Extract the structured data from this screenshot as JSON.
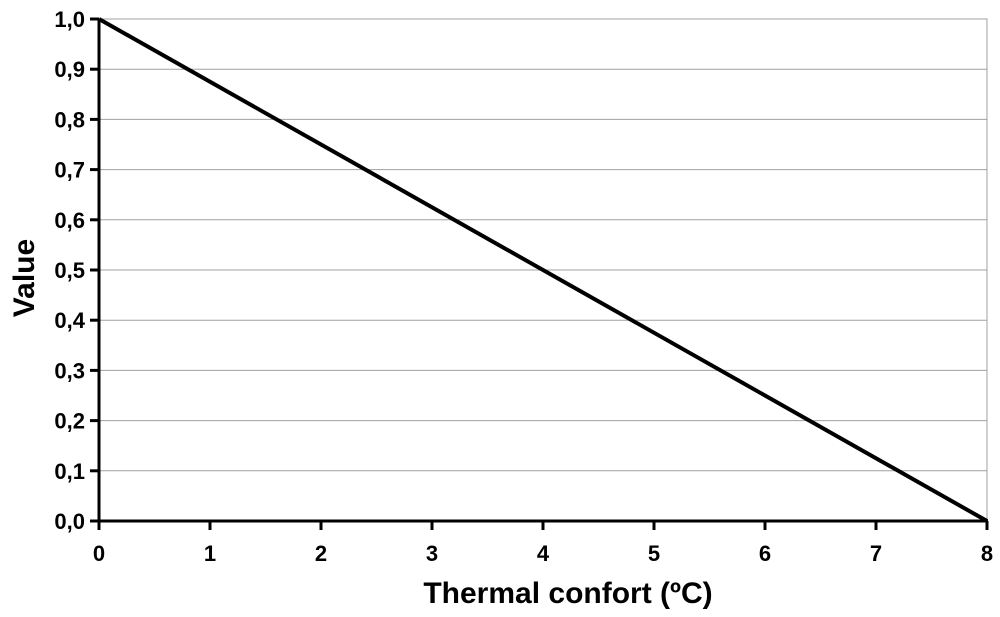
{
  "chart_data": {
    "type": "line",
    "xlabel": "Thermal confort (ºC)",
    "ylabel": "Value",
    "xlim": [
      0,
      8
    ],
    "ylim": [
      0,
      1
    ],
    "x_ticks": [
      0,
      1,
      2,
      3,
      4,
      5,
      6,
      7,
      8
    ],
    "x_tick_labels": [
      "0",
      "1",
      "2",
      "3",
      "4",
      "5",
      "6",
      "7",
      "8"
    ],
    "y_ticks": [
      0,
      0.1,
      0.2,
      0.3,
      0.4,
      0.5,
      0.6,
      0.7,
      0.8,
      0.9,
      1.0
    ],
    "y_tick_labels": [
      "0,0",
      "0,1",
      "0,2",
      "0,3",
      "0,4",
      "0,5",
      "0,6",
      "0,7",
      "0,8",
      "0,9",
      "1,0"
    ],
    "grid": "horizontal",
    "legend": "none",
    "series": [
      {
        "x": [
          0,
          8
        ],
        "values": [
          1.0,
          0.0
        ],
        "color": "#000000"
      }
    ],
    "colors": {
      "line": "#000000",
      "axis": "#000000",
      "grid": "#a0a0a0",
      "plot_border": "#a0a0a0"
    }
  }
}
